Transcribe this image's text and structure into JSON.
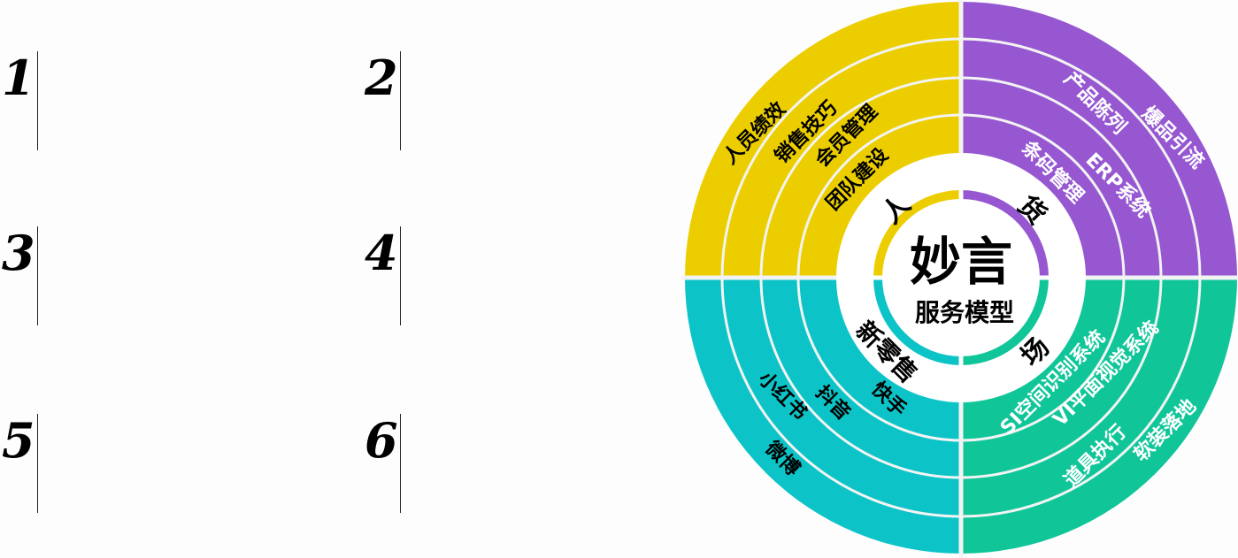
{
  "list_numbers": [
    "1",
    "2",
    "3",
    "4",
    "5",
    "6"
  ],
  "diagram": {
    "center_title": "妙言",
    "center_subtitle": "服务模型",
    "colors": {
      "ren": "#ecce00",
      "huo": "#9657d1",
      "xinlingshou": "#0cc4c7",
      "chang": "#10c699",
      "ring_line": "#f3f3f3",
      "divider": "#f3f3f3"
    },
    "quadrants": {
      "ren": {
        "label": "人",
        "items": [
          "人员绩效",
          "销售技巧",
          "会员管理",
          "团队建设"
        ]
      },
      "huo": {
        "label": "货",
        "items": [
          "爆品引流",
          "产品陈列",
          "ERP系统",
          "条码管理"
        ]
      },
      "xinlingshou": {
        "label": "新零售",
        "items": [
          "小红书",
          "抖音",
          "快手",
          "微博"
        ]
      },
      "chang": {
        "label": "场",
        "items": [
          "软装落地",
          "道具执行",
          "VI平面视觉系统",
          "SI空间识别系统"
        ]
      }
    }
  }
}
